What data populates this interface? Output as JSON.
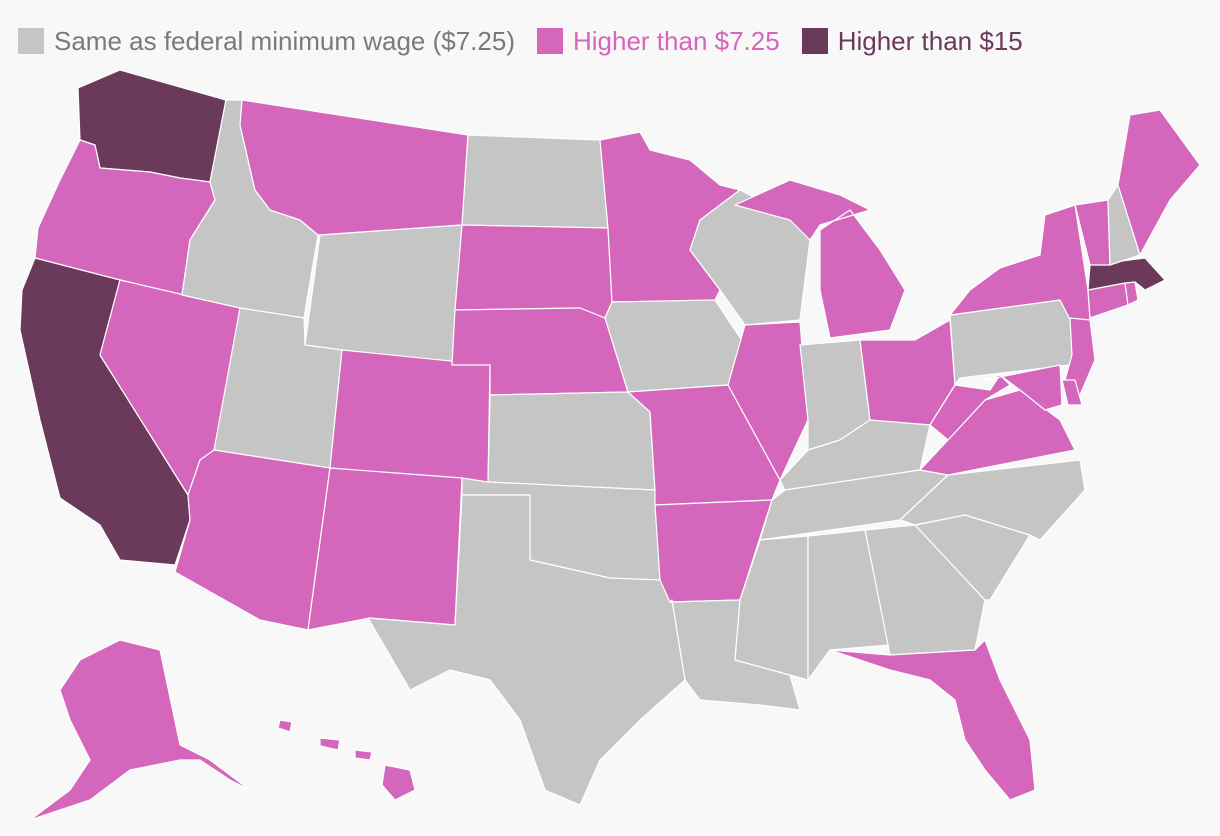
{
  "colors": {
    "same": "#c5c5c5",
    "higher": "#d466bc",
    "higher15": "#6b3a5b",
    "same_text": "#7a7a7a"
  },
  "legend": {
    "same_label": "Same as federal minimum wage ($7.25)",
    "higher_label": "Higher than $7.25",
    "higher15_label": "Higher than $15"
  },
  "states": {
    "WA": "higher15",
    "OR": "higher",
    "CA": "higher15",
    "NV": "higher",
    "ID": "same",
    "MT": "higher",
    "WY": "same",
    "UT": "same",
    "AZ": "higher",
    "CO": "higher",
    "NM": "higher",
    "ND": "same",
    "SD": "higher",
    "NE": "higher",
    "KS": "same",
    "OK": "same",
    "TX": "same",
    "MN": "higher",
    "IA": "same",
    "MO": "higher",
    "AR": "higher",
    "LA": "same",
    "WI": "same",
    "IL": "higher",
    "MI": "higher",
    "IN": "same",
    "OH": "higher",
    "KY": "same",
    "TN": "same",
    "MS": "same",
    "AL": "same",
    "GA": "same",
    "FL": "higher",
    "SC": "same",
    "NC": "same",
    "VA": "higher",
    "WV": "higher",
    "PA": "same",
    "NY": "higher",
    "VT": "higher",
    "NH": "same",
    "ME": "higher",
    "MA": "higher15",
    "RI": "higher",
    "CT": "higher",
    "NJ": "higher",
    "DE": "higher",
    "MD": "higher",
    "AK": "higher",
    "HI": "higher"
  }
}
